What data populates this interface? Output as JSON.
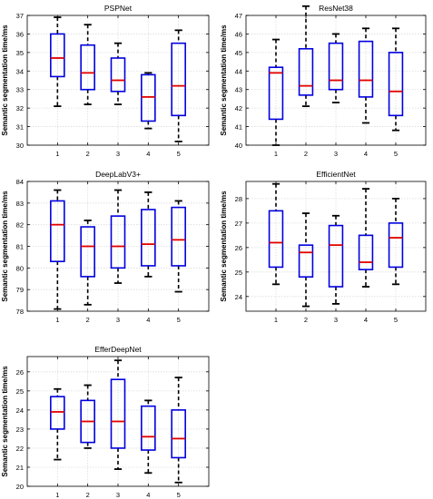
{
  "chart_data": [
    {
      "type": "box",
      "title": "PSPNet",
      "xlabel": "",
      "ylabel": "Semantic segmentation time/ms",
      "categories": [
        "1",
        "2",
        "3",
        "4",
        "5"
      ],
      "ylim": [
        30,
        37
      ],
      "yticks": [
        30,
        31,
        32,
        33,
        34,
        35,
        36,
        37
      ],
      "grid": true,
      "boxes": [
        {
          "min": 32.1,
          "q1": 33.7,
          "median": 34.7,
          "q3": 36.0,
          "max": 36.9
        },
        {
          "min": 32.2,
          "q1": 33.0,
          "median": 33.9,
          "q3": 35.4,
          "max": 36.5
        },
        {
          "min": 32.2,
          "q1": 32.9,
          "median": 33.5,
          "q3": 34.7,
          "max": 35.5
        },
        {
          "min": 30.9,
          "q1": 31.3,
          "median": 32.6,
          "q3": 33.8,
          "max": 33.9
        },
        {
          "min": 30.2,
          "q1": 31.6,
          "median": 33.2,
          "q3": 35.5,
          "max": 36.2
        }
      ]
    },
    {
      "type": "box",
      "title": "ResNet38",
      "xlabel": "",
      "ylabel": "Semantic segmentation time/ms",
      "categories": [
        "1",
        "2",
        "3",
        "4",
        "5"
      ],
      "ylim": [
        40,
        47
      ],
      "yticks": [
        40,
        41,
        42,
        43,
        44,
        45,
        46,
        47
      ],
      "grid": true,
      "boxes": [
        {
          "min": 40.0,
          "q1": 41.4,
          "median": 43.9,
          "q3": 44.2,
          "max": 45.7
        },
        {
          "min": 42.1,
          "q1": 42.7,
          "median": 43.2,
          "q3": 45.2,
          "max": 47.5
        },
        {
          "min": 42.3,
          "q1": 43.0,
          "median": 43.5,
          "q3": 45.5,
          "max": 46.0
        },
        {
          "min": 41.2,
          "q1": 42.6,
          "median": 43.5,
          "q3": 45.6,
          "max": 46.3
        },
        {
          "min": 40.8,
          "q1": 41.6,
          "median": 42.9,
          "q3": 45.0,
          "max": 46.3
        }
      ]
    },
    {
      "type": "box",
      "title": "DeepLabV3+",
      "xlabel": "",
      "ylabel": "Semantic segmentation time/ms",
      "categories": [
        "1",
        "2",
        "3",
        "4",
        "5"
      ],
      "ylim": [
        78,
        84
      ],
      "yticks": [
        78,
        79,
        80,
        81,
        82,
        83,
        84
      ],
      "grid": true,
      "boxes": [
        {
          "min": 78.1,
          "q1": 80.3,
          "median": 82.0,
          "q3": 83.1,
          "max": 83.6
        },
        {
          "min": 78.3,
          "q1": 79.6,
          "median": 81.0,
          "q3": 81.9,
          "max": 82.2
        },
        {
          "min": 79.3,
          "q1": 80.0,
          "median": 81.0,
          "q3": 82.4,
          "max": 83.6
        },
        {
          "min": 79.6,
          "q1": 80.1,
          "median": 81.1,
          "q3": 82.7,
          "max": 83.5
        },
        {
          "min": 78.9,
          "q1": 80.1,
          "median": 81.3,
          "q3": 82.8,
          "max": 83.1
        }
      ]
    },
    {
      "type": "box",
      "title": "EfficientNet",
      "xlabel": "",
      "ylabel": "Semantic segmentation time/ms",
      "categories": [
        "1",
        "2",
        "3",
        "4",
        "5"
      ],
      "ylim": [
        23.4,
        28.7
      ],
      "yticks": [
        24,
        25,
        26,
        27,
        28
      ],
      "grid": true,
      "boxes": [
        {
          "min": 24.5,
          "q1": 25.2,
          "median": 26.2,
          "q3": 27.5,
          "max": 28.6
        },
        {
          "min": 23.6,
          "q1": 24.8,
          "median": 25.8,
          "q3": 26.1,
          "max": 27.4
        },
        {
          "min": 23.7,
          "q1": 24.4,
          "median": 26.1,
          "q3": 26.9,
          "max": 27.3
        },
        {
          "min": 24.4,
          "q1": 25.1,
          "median": 25.4,
          "q3": 26.5,
          "max": 28.4
        },
        {
          "min": 24.5,
          "q1": 25.2,
          "median": 26.4,
          "q3": 27.0,
          "max": 28.0
        }
      ]
    },
    {
      "type": "box",
      "title": "EfferDeepNet",
      "xlabel": "",
      "ylabel": "Semantic segmentation time/ms",
      "categories": [
        "1",
        "2",
        "3",
        "4",
        "5"
      ],
      "ylim": [
        20,
        26.8
      ],
      "yticks": [
        20,
        21,
        22,
        23,
        24,
        25,
        26
      ],
      "grid": true,
      "boxes": [
        {
          "min": 21.4,
          "q1": 23.0,
          "median": 23.9,
          "q3": 24.7,
          "max": 25.1
        },
        {
          "min": 22.0,
          "q1": 22.3,
          "median": 23.4,
          "q3": 24.5,
          "max": 25.3
        },
        {
          "min": 20.9,
          "q1": 22.0,
          "median": 23.4,
          "q3": 25.6,
          "max": 26.6
        },
        {
          "min": 20.7,
          "q1": 21.9,
          "median": 22.6,
          "q3": 24.2,
          "max": 24.5
        },
        {
          "min": 20.2,
          "q1": 21.5,
          "median": 22.5,
          "q3": 24.0,
          "max": 25.7
        }
      ]
    }
  ],
  "colors": {
    "box": "#0000e0",
    "median": "#e00000",
    "whisker": "#000000",
    "grid": "#dcdcdc",
    "axis": "#000000"
  }
}
